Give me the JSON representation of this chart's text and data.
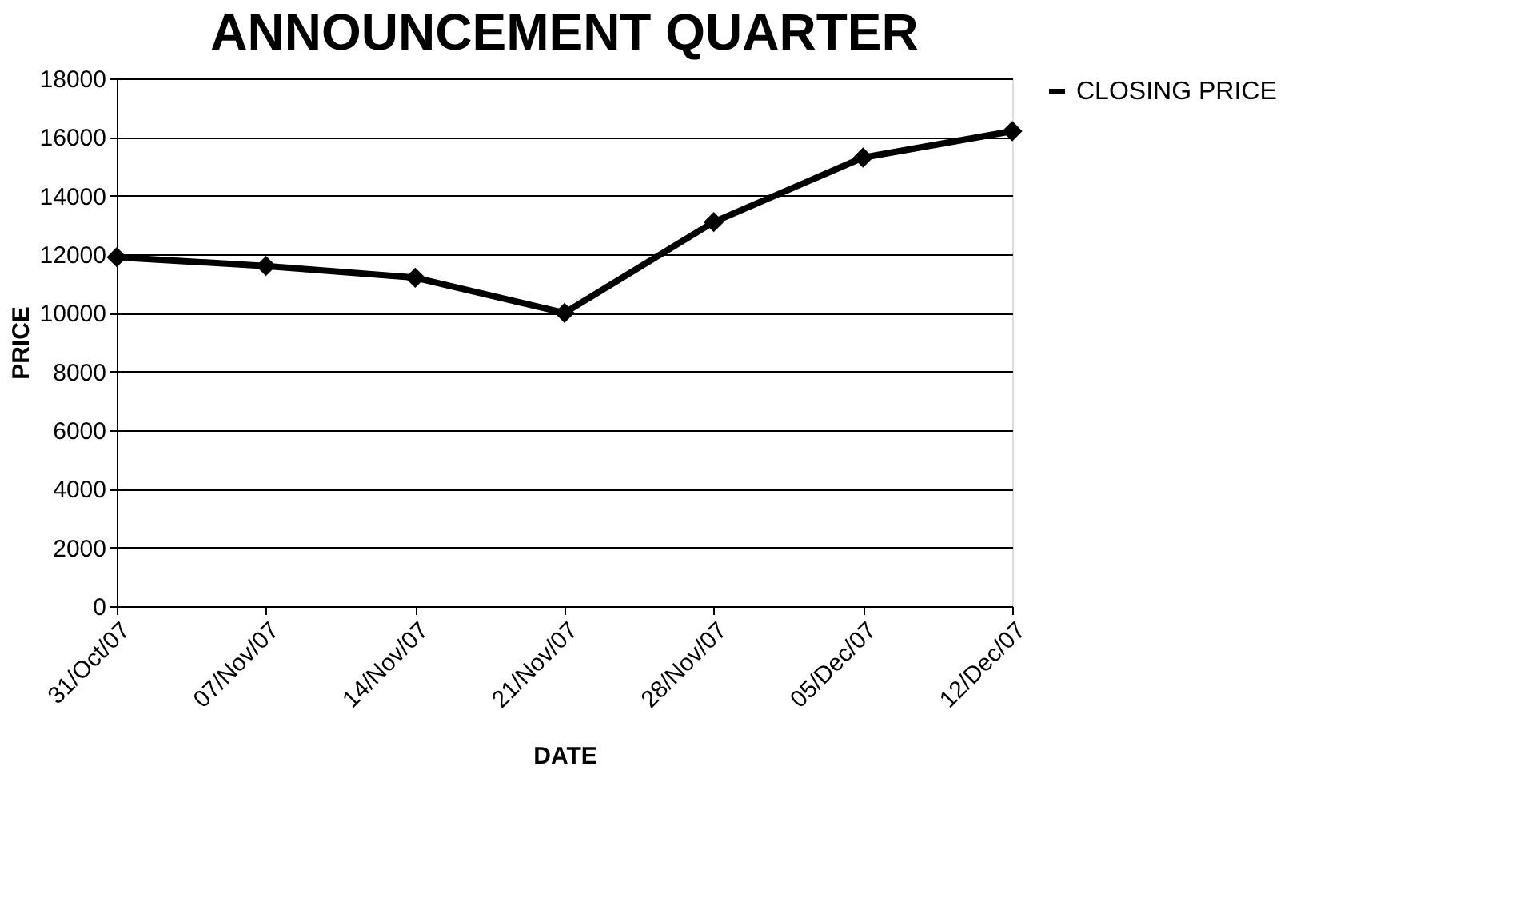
{
  "chart_data": {
    "type": "line",
    "title": "ANNOUNCEMENT QUARTER",
    "xlabel": "DATE",
    "ylabel": "PRICE",
    "categories": [
      "31/Oct/07",
      "07/Nov/07",
      "14/Nov/07",
      "21/Nov/07",
      "28/Nov/07",
      "05/Dec/07",
      "12/Dec/07"
    ],
    "series": [
      {
        "name": "CLOSING PRICE",
        "color": "#000000",
        "values": [
          11900,
          11600,
          11200,
          10000,
          13100,
          15300,
          16200
        ]
      }
    ],
    "ylim": [
      0,
      18000
    ],
    "yticks": [
      0,
      2000,
      4000,
      6000,
      8000,
      10000,
      12000,
      14000,
      16000,
      18000
    ],
    "grid": "y",
    "legend": "right",
    "marker": "diamond",
    "line_style": "solid"
  }
}
